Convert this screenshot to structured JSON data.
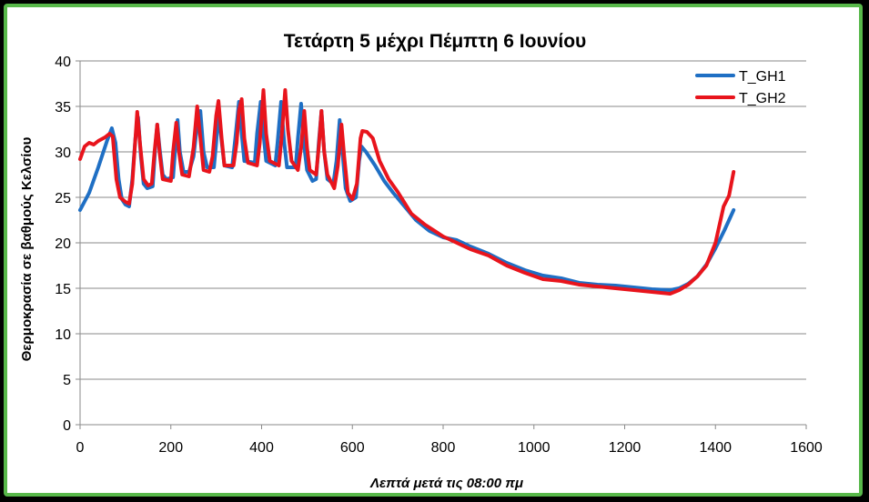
{
  "chart_data": {
    "type": "line",
    "title": "Τετάρτη 5 μέχρι Πέμπτη 6 Ιουνίου",
    "xlabel": "Λεπτά μετά τις 08:00 πμ",
    "ylabel": "Θερμοκρασία σε βαθμούς Κελσίου",
    "xlim": [
      0,
      1600
    ],
    "ylim": [
      0,
      40
    ],
    "xticks": [
      "0",
      "200",
      "400",
      "600",
      "800",
      "1000",
      "1200",
      "1400",
      "1600"
    ],
    "yticks": [
      "0",
      "5",
      "10",
      "15",
      "20",
      "25",
      "30",
      "35",
      "40"
    ],
    "grid": "horizontal",
    "legend_position": "top-right",
    "series": [
      {
        "name": "T_GH1",
        "color": "#1f6fc4",
        "points": [
          [
            0,
            23.6
          ],
          [
            20,
            25.5
          ],
          [
            40,
            28.3
          ],
          [
            60,
            31.3
          ],
          [
            70,
            32.6
          ],
          [
            78,
            31.0
          ],
          [
            85,
            27.0
          ],
          [
            92,
            24.8
          ],
          [
            100,
            24.2
          ],
          [
            108,
            24.0
          ],
          [
            115,
            27.0
          ],
          [
            122,
            31.5
          ],
          [
            128,
            33.8
          ],
          [
            134,
            29.5
          ],
          [
            140,
            26.5
          ],
          [
            148,
            26.0
          ],
          [
            160,
            26.2
          ],
          [
            165,
            30.0
          ],
          [
            170,
            33.0
          ],
          [
            175,
            30.5
          ],
          [
            182,
            27.5
          ],
          [
            190,
            27.0
          ],
          [
            205,
            27.2
          ],
          [
            210,
            30.5
          ],
          [
            215,
            33.5
          ],
          [
            220,
            30.0
          ],
          [
            228,
            27.8
          ],
          [
            240,
            27.8
          ],
          [
            250,
            29.5
          ],
          [
            258,
            33.0
          ],
          [
            265,
            34.5
          ],
          [
            272,
            30.0
          ],
          [
            280,
            28.3
          ],
          [
            295,
            28.3
          ],
          [
            300,
            31.0
          ],
          [
            305,
            34.5
          ],
          [
            310,
            32.0
          ],
          [
            318,
            28.5
          ],
          [
            335,
            28.3
          ],
          [
            342,
            31.5
          ],
          [
            350,
            35.5
          ],
          [
            356,
            32.0
          ],
          [
            362,
            29.0
          ],
          [
            385,
            28.8
          ],
          [
            390,
            32.0
          ],
          [
            398,
            35.5
          ],
          [
            404,
            32.0
          ],
          [
            410,
            29.0
          ],
          [
            430,
            28.5
          ],
          [
            435,
            31.0
          ],
          [
            443,
            35.5
          ],
          [
            450,
            31.0
          ],
          [
            456,
            28.3
          ],
          [
            475,
            28.3
          ],
          [
            480,
            31.5
          ],
          [
            487,
            35.3
          ],
          [
            493,
            31.0
          ],
          [
            500,
            28.0
          ],
          [
            512,
            26.8
          ],
          [
            520,
            27.0
          ],
          [
            526,
            31.0
          ],
          [
            532,
            34.5
          ],
          [
            538,
            30.0
          ],
          [
            545,
            27.0
          ],
          [
            558,
            26.5
          ],
          [
            565,
            29.0
          ],
          [
            572,
            33.5
          ],
          [
            578,
            30.0
          ],
          [
            585,
            26.0
          ],
          [
            595,
            24.6
          ],
          [
            608,
            25.0
          ],
          [
            615,
            29.0
          ],
          [
            620,
            30.6
          ],
          [
            630,
            30.0
          ],
          [
            650,
            28.5
          ],
          [
            670,
            26.8
          ],
          [
            690,
            25.5
          ],
          [
            710,
            24.3
          ],
          [
            740,
            22.5
          ],
          [
            770,
            21.3
          ],
          [
            800,
            20.6
          ],
          [
            830,
            20.3
          ],
          [
            860,
            19.6
          ],
          [
            880,
            19.2
          ],
          [
            900,
            18.8
          ],
          [
            940,
            17.8
          ],
          [
            980,
            17.0
          ],
          [
            1020,
            16.4
          ],
          [
            1060,
            16.1
          ],
          [
            1100,
            15.6
          ],
          [
            1140,
            15.4
          ],
          [
            1180,
            15.3
          ],
          [
            1220,
            15.1
          ],
          [
            1260,
            14.9
          ],
          [
            1300,
            14.8
          ],
          [
            1320,
            15.0
          ],
          [
            1340,
            15.5
          ],
          [
            1360,
            16.3
          ],
          [
            1380,
            17.6
          ],
          [
            1400,
            19.4
          ],
          [
            1420,
            21.4
          ],
          [
            1440,
            23.6
          ]
        ]
      },
      {
        "name": "T_GH2",
        "color": "#e8141c",
        "points": [
          [
            0,
            29.2
          ],
          [
            10,
            30.6
          ],
          [
            20,
            31.0
          ],
          [
            30,
            30.8
          ],
          [
            40,
            31.2
          ],
          [
            55,
            31.6
          ],
          [
            65,
            32.0
          ],
          [
            72,
            31.7
          ],
          [
            80,
            27.0
          ],
          [
            88,
            25.0
          ],
          [
            100,
            24.5
          ],
          [
            108,
            24.3
          ],
          [
            115,
            26.5
          ],
          [
            120,
            30.0
          ],
          [
            126,
            34.4
          ],
          [
            132,
            31.0
          ],
          [
            140,
            27.0
          ],
          [
            150,
            26.3
          ],
          [
            158,
            26.5
          ],
          [
            164,
            30.0
          ],
          [
            170,
            33.0
          ],
          [
            175,
            30.0
          ],
          [
            182,
            27.0
          ],
          [
            200,
            26.8
          ],
          [
            205,
            30.0
          ],
          [
            212,
            33.2
          ],
          [
            218,
            30.0
          ],
          [
            225,
            27.5
          ],
          [
            240,
            27.3
          ],
          [
            250,
            30.5
          ],
          [
            258,
            35.0
          ],
          [
            264,
            32.0
          ],
          [
            272,
            28.0
          ],
          [
            285,
            27.8
          ],
          [
            292,
            29.5
          ],
          [
            300,
            34.0
          ],
          [
            305,
            35.6
          ],
          [
            312,
            31.5
          ],
          [
            318,
            28.5
          ],
          [
            338,
            28.5
          ],
          [
            345,
            31.0
          ],
          [
            350,
            34.5
          ],
          [
            356,
            35.8
          ],
          [
            362,
            31.5
          ],
          [
            370,
            28.8
          ],
          [
            390,
            28.5
          ],
          [
            396,
            31.0
          ],
          [
            404,
            36.8
          ],
          [
            410,
            32.0
          ],
          [
            418,
            29.0
          ],
          [
            438,
            28.5
          ],
          [
            444,
            31.5
          ],
          [
            452,
            36.8
          ],
          [
            458,
            32.5
          ],
          [
            466,
            29.0
          ],
          [
            480,
            28.0
          ],
          [
            487,
            30.5
          ],
          [
            494,
            34.5
          ],
          [
            500,
            30.5
          ],
          [
            506,
            28.0
          ],
          [
            520,
            27.5
          ],
          [
            526,
            30.5
          ],
          [
            532,
            34.5
          ],
          [
            538,
            30.0
          ],
          [
            545,
            27.5
          ],
          [
            560,
            26.0
          ],
          [
            568,
            28.5
          ],
          [
            576,
            33.0
          ],
          [
            582,
            29.5
          ],
          [
            590,
            25.5
          ],
          [
            600,
            24.8
          ],
          [
            610,
            26.5
          ],
          [
            618,
            31.5
          ],
          [
            622,
            32.3
          ],
          [
            632,
            32.2
          ],
          [
            645,
            31.5
          ],
          [
            660,
            29.0
          ],
          [
            680,
            27.0
          ],
          [
            700,
            25.6
          ],
          [
            730,
            23.2
          ],
          [
            760,
            22.0
          ],
          [
            800,
            20.7
          ],
          [
            830,
            20.0
          ],
          [
            860,
            19.3
          ],
          [
            900,
            18.6
          ],
          [
            940,
            17.5
          ],
          [
            980,
            16.7
          ],
          [
            1020,
            16.0
          ],
          [
            1060,
            15.8
          ],
          [
            1100,
            15.4
          ],
          [
            1140,
            15.2
          ],
          [
            1180,
            15.0
          ],
          [
            1220,
            14.8
          ],
          [
            1260,
            14.6
          ],
          [
            1300,
            14.4
          ],
          [
            1320,
            14.8
          ],
          [
            1340,
            15.4
          ],
          [
            1360,
            16.3
          ],
          [
            1380,
            17.5
          ],
          [
            1400,
            20.0
          ],
          [
            1418,
            24.0
          ],
          [
            1430,
            25.2
          ],
          [
            1440,
            27.8
          ]
        ]
      }
    ]
  }
}
